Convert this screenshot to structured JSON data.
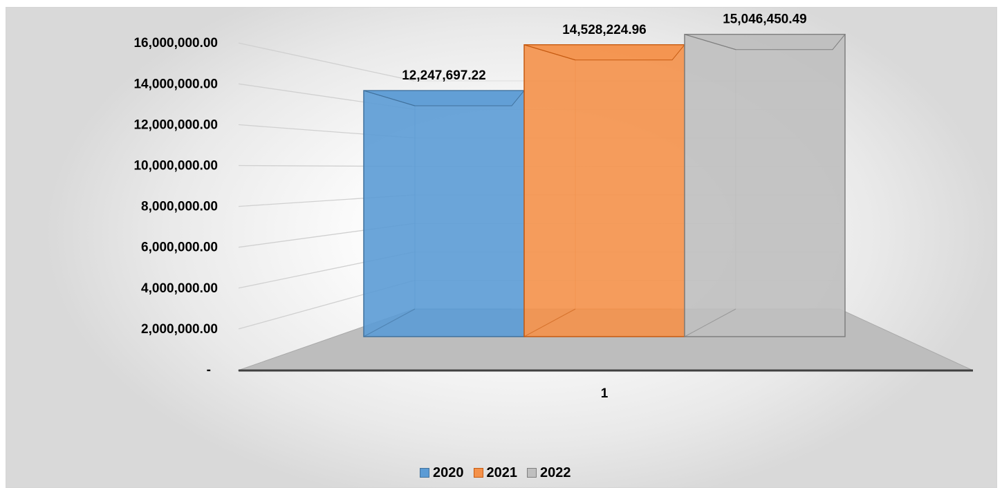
{
  "chart_data": {
    "type": "bar",
    "style": "3d-clustered-column",
    "categories": [
      "1"
    ],
    "series": [
      {
        "name": "2020",
        "values": [
          12247697.22
        ],
        "label": "12,247,697.22",
        "color": "#5B9BD5",
        "edge": "#41719C"
      },
      {
        "name": "2021",
        "values": [
          14528224.96
        ],
        "label": "14,528,224.96",
        "color": "#F4914A",
        "edge": "#C55A11"
      },
      {
        "name": "2022",
        "values": [
          15046450.49
        ],
        "label": "15,046,450.49",
        "color": "#BFBFBF",
        "edge": "#7F7F7F"
      }
    ],
    "y_ticks": [
      {
        "value": 0,
        "label": "-"
      },
      {
        "value": 2000000,
        "label": "2,000,000.00"
      },
      {
        "value": 4000000,
        "label": "4,000,000.00"
      },
      {
        "value": 6000000,
        "label": "6,000,000.00"
      },
      {
        "value": 8000000,
        "label": "8,000,000.00"
      },
      {
        "value": 10000000,
        "label": "10,000,000.00"
      },
      {
        "value": 12000000,
        "label": "12,000,000.00"
      },
      {
        "value": 14000000,
        "label": "14,000,000.00"
      },
      {
        "value": 16000000,
        "label": "16,000,000.00"
      }
    ],
    "ylim": [
      0,
      16000000
    ],
    "grid": true,
    "legend_position": "bottom",
    "title": "",
    "xlabel": "",
    "ylabel": ""
  }
}
